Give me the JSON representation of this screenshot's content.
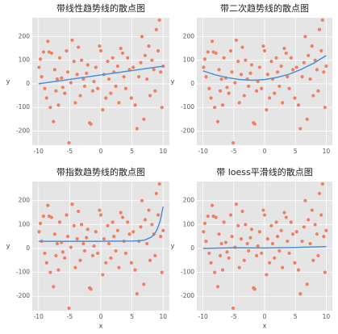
{
  "chart_data": [
    {
      "type": "scatter",
      "title": "带线性趋势线的散点图",
      "ylabel": "y",
      "x": [
        -9.9,
        -9.7,
        -9.5,
        -9.2,
        -9,
        -8.7,
        -8.5,
        -8.3,
        -8.1,
        -7.9,
        -7.6,
        -7.4,
        -7.2,
        -7,
        -6.8,
        -6.6,
        -6.3,
        -6.1,
        -5.8,
        -5.5,
        -5.3,
        -5.1,
        -4.8,
        -4.6,
        -4.3,
        -4.1,
        -3.8,
        -3.6,
        -3.3,
        -3.1,
        -2.8,
        -2.6,
        -2.3,
        -2.1,
        -1.8,
        -1.6,
        -1.3,
        -1.1,
        -0.8,
        -0.5,
        -0.2,
        0,
        0.3,
        0.5,
        0.8,
        1.1,
        1.3,
        1.6,
        1.9,
        2.1,
        2.4,
        2.7,
        2.9,
        3.2,
        3.5,
        3.7,
        4,
        4.3,
        4.6,
        4.9,
        5.2,
        5.5,
        5.8,
        6.1,
        6.4,
        6.6,
        6.9,
        7.1,
        7.4,
        7.7,
        7.9,
        8.2,
        8.5,
        8.7,
        8.9,
        9.2,
        9.4,
        9.6,
        9.8,
        10
      ],
      "values": [
        70,
        105,
        30,
        135,
        -20,
        -60,
        180,
        135,
        -100,
        130,
        -160,
        60,
        -30,
        20,
        -90,
        110,
        25,
        -15,
        -40,
        140,
        50,
        -250,
        5,
        185,
        95,
        -80,
        40,
        155,
        -50,
        100,
        20,
        -10,
        45,
        80,
        -165,
        -170,
        -30,
        10,
        70,
        -20,
        160,
        140,
        -110,
        40,
        -60,
        95,
        20,
        -40,
        110,
        50,
        -10,
        75,
        -80,
        150,
        130,
        30,
        -20,
        110,
        60,
        -60,
        70,
        -90,
        -190,
        30,
        90,
        200,
        -150,
        120,
        20,
        160,
        -50,
        100,
        60,
        -30,
        230,
        140,
        270,
        50,
        -100,
        75
      ],
      "trend": {
        "x": [
          -10,
          10
        ],
        "values": [
          0,
          75
        ]
      },
      "color": "#f07f5f",
      "trend_color": "#4a90d9",
      "xlim": [
        -11,
        11
      ],
      "ylim": [
        -260,
        280
      ],
      "xticks": [
        -10,
        -5,
        0,
        5,
        10
      ],
      "yticks": [
        -200,
        -100,
        0,
        100,
        200
      ],
      "grid": true
    },
    {
      "type": "scatter",
      "title": "带二次趋势线的散点图",
      "ylabel": "y",
      "x": [
        -9.9,
        -9.7,
        -9.5,
        -9.2,
        -9,
        -8.7,
        -8.5,
        -8.3,
        -8.1,
        -7.9,
        -7.6,
        -7.4,
        -7.2,
        -7,
        -6.8,
        -6.6,
        -6.3,
        -6.1,
        -5.8,
        -5.5,
        -5.3,
        -5.1,
        -4.8,
        -4.6,
        -4.3,
        -4.1,
        -3.8,
        -3.6,
        -3.3,
        -3.1,
        -2.8,
        -2.6,
        -2.3,
        -2.1,
        -1.8,
        -1.6,
        -1.3,
        -1.1,
        -0.8,
        -0.5,
        -0.2,
        0,
        0.3,
        0.5,
        0.8,
        1.1,
        1.3,
        1.6,
        1.9,
        2.1,
        2.4,
        2.7,
        2.9,
        3.2,
        3.5,
        3.7,
        4,
        4.3,
        4.6,
        4.9,
        5.2,
        5.5,
        5.8,
        6.1,
        6.4,
        6.6,
        6.9,
        7.1,
        7.4,
        7.7,
        7.9,
        8.2,
        8.5,
        8.7,
        8.9,
        9.2,
        9.4,
        9.6,
        9.8,
        10
      ],
      "values": [
        70,
        105,
        30,
        135,
        -20,
        -60,
        180,
        135,
        -100,
        130,
        -160,
        60,
        -30,
        20,
        -90,
        110,
        25,
        -15,
        -40,
        140,
        50,
        -250,
        5,
        185,
        95,
        -80,
        40,
        155,
        -50,
        100,
        20,
        -10,
        45,
        80,
        -165,
        -170,
        -30,
        10,
        70,
        -20,
        160,
        140,
        -110,
        40,
        -60,
        95,
        20,
        -40,
        110,
        50,
        -10,
        75,
        -80,
        150,
        130,
        30,
        -20,
        110,
        60,
        -60,
        70,
        -90,
        -190,
        30,
        90,
        200,
        -150,
        120,
        20,
        160,
        -50,
        100,
        60,
        -30,
        230,
        140,
        270,
        50,
        -100,
        75
      ],
      "trend": {
        "x": [
          -10,
          -8,
          -6,
          -4,
          -2,
          0,
          2,
          4,
          6,
          8,
          10
        ],
        "values": [
          55,
          38,
          26,
          18,
          15,
          18,
          27,
          41,
          62,
          88,
          120
        ]
      },
      "color": "#f07f5f",
      "trend_color": "#4a90d9",
      "xlim": [
        -11,
        11
      ],
      "ylim": [
        -260,
        280
      ],
      "xticks": [
        -10,
        -5,
        0,
        5,
        10
      ],
      "yticks": [
        -200,
        -100,
        0,
        100,
        200
      ],
      "grid": true
    },
    {
      "type": "scatter",
      "title": "带指数趋势线的散点图",
      "xlabel": "x",
      "ylabel": "y",
      "x": [
        -9.9,
        -9.7,
        -9.5,
        -9.2,
        -9,
        -8.7,
        -8.5,
        -8.3,
        -8.1,
        -7.9,
        -7.6,
        -7.4,
        -7.2,
        -7,
        -6.8,
        -6.6,
        -6.3,
        -6.1,
        -5.8,
        -5.5,
        -5.3,
        -5.1,
        -4.8,
        -4.6,
        -4.3,
        -4.1,
        -3.8,
        -3.6,
        -3.3,
        -3.1,
        -2.8,
        -2.6,
        -2.3,
        -2.1,
        -1.8,
        -1.6,
        -1.3,
        -1.1,
        -0.8,
        -0.5,
        -0.2,
        0,
        0.3,
        0.5,
        0.8,
        1.1,
        1.3,
        1.6,
        1.9,
        2.1,
        2.4,
        2.7,
        2.9,
        3.2,
        3.5,
        3.7,
        4,
        4.3,
        4.6,
        4.9,
        5.2,
        5.5,
        5.8,
        6.1,
        6.4,
        6.6,
        6.9,
        7.1,
        7.4,
        7.7,
        7.9,
        8.2,
        8.5,
        8.7,
        8.9,
        9.2,
        9.4,
        9.6,
        9.8,
        10
      ],
      "values": [
        70,
        105,
        30,
        135,
        -20,
        -60,
        180,
        135,
        -100,
        130,
        -160,
        60,
        -30,
        20,
        -90,
        110,
        25,
        -15,
        -40,
        140,
        50,
        -250,
        5,
        185,
        95,
        -80,
        40,
        155,
        -50,
        100,
        20,
        -10,
        45,
        80,
        -165,
        -170,
        -30,
        10,
        70,
        -20,
        160,
        140,
        -110,
        40,
        -60,
        95,
        20,
        -40,
        110,
        50,
        -10,
        75,
        -80,
        150,
        130,
        30,
        -20,
        110,
        60,
        -60,
        70,
        -90,
        -190,
        30,
        90,
        200,
        -150,
        120,
        20,
        160,
        -50,
        100,
        60,
        -30,
        230,
        140,
        270,
        50,
        -100,
        75
      ],
      "trend": {
        "x": [
          -10,
          -5,
          0,
          5,
          6,
          7,
          8,
          8.5,
          9,
          9.5,
          10
        ],
        "values": [
          30,
          30,
          30,
          31,
          32,
          35,
          46,
          56,
          78,
          113,
          175
        ]
      },
      "color": "#f07f5f",
      "trend_color": "#4a90d9",
      "xlim": [
        -11,
        11
      ],
      "ylim": [
        -260,
        280
      ],
      "xticks": [
        -10,
        -5,
        0,
        5,
        10
      ],
      "yticks": [
        -200,
        -100,
        0,
        100,
        200
      ],
      "grid": true
    },
    {
      "type": "scatter",
      "title": "带 loess平滑线的散点图",
      "xlabel": "x",
      "ylabel": "y",
      "x": [
        -9.9,
        -9.7,
        -9.5,
        -9.2,
        -9,
        -8.7,
        -8.5,
        -8.3,
        -8.1,
        -7.9,
        -7.6,
        -7.4,
        -7.2,
        -7,
        -6.8,
        -6.6,
        -6.3,
        -6.1,
        -5.8,
        -5.5,
        -5.3,
        -5.1,
        -4.8,
        -4.6,
        -4.3,
        -4.1,
        -3.8,
        -3.6,
        -3.3,
        -3.1,
        -2.8,
        -2.6,
        -2.3,
        -2.1,
        -1.8,
        -1.6,
        -1.3,
        -1.1,
        -0.8,
        -0.5,
        -0.2,
        0,
        0.3,
        0.5,
        0.8,
        1.1,
        1.3,
        1.6,
        1.9,
        2.1,
        2.4,
        2.7,
        2.9,
        3.2,
        3.5,
        3.7,
        4,
        4.3,
        4.6,
        4.9,
        5.2,
        5.5,
        5.8,
        6.1,
        6.4,
        6.6,
        6.9,
        7.1,
        7.4,
        7.7,
        7.9,
        8.2,
        8.5,
        8.7,
        8.9,
        9.2,
        9.4,
        9.6,
        9.8,
        10
      ],
      "values": [
        70,
        105,
        30,
        135,
        -20,
        -60,
        180,
        135,
        -100,
        130,
        -160,
        60,
        -30,
        20,
        -90,
        110,
        25,
        -15,
        -40,
        140,
        50,
        -250,
        5,
        185,
        95,
        -80,
        40,
        155,
        -50,
        100,
        20,
        -10,
        45,
        80,
        -165,
        -170,
        -30,
        10,
        70,
        -20,
        160,
        140,
        -110,
        40,
        -60,
        95,
        20,
        -40,
        110,
        50,
        -10,
        75,
        -80,
        150,
        130,
        30,
        -20,
        110,
        60,
        -60,
        70,
        -90,
        -190,
        30,
        90,
        200,
        -150,
        120,
        20,
        160,
        -50,
        100,
        60,
        -30,
        230,
        140,
        270,
        50,
        -100,
        75
      ],
      "trend": {
        "x": [
          -10,
          -5,
          0,
          5,
          10
        ],
        "values": [
          0,
          3,
          2,
          4,
          8
        ]
      },
      "color": "#f07f5f",
      "trend_color": "#4a90d9",
      "xlim": [
        -11,
        11
      ],
      "ylim": [
        -260,
        280
      ],
      "xticks": [
        -10,
        -5,
        0,
        5,
        10
      ],
      "yticks": [
        -200,
        -100,
        0,
        100,
        200
      ],
      "grid": true
    }
  ]
}
